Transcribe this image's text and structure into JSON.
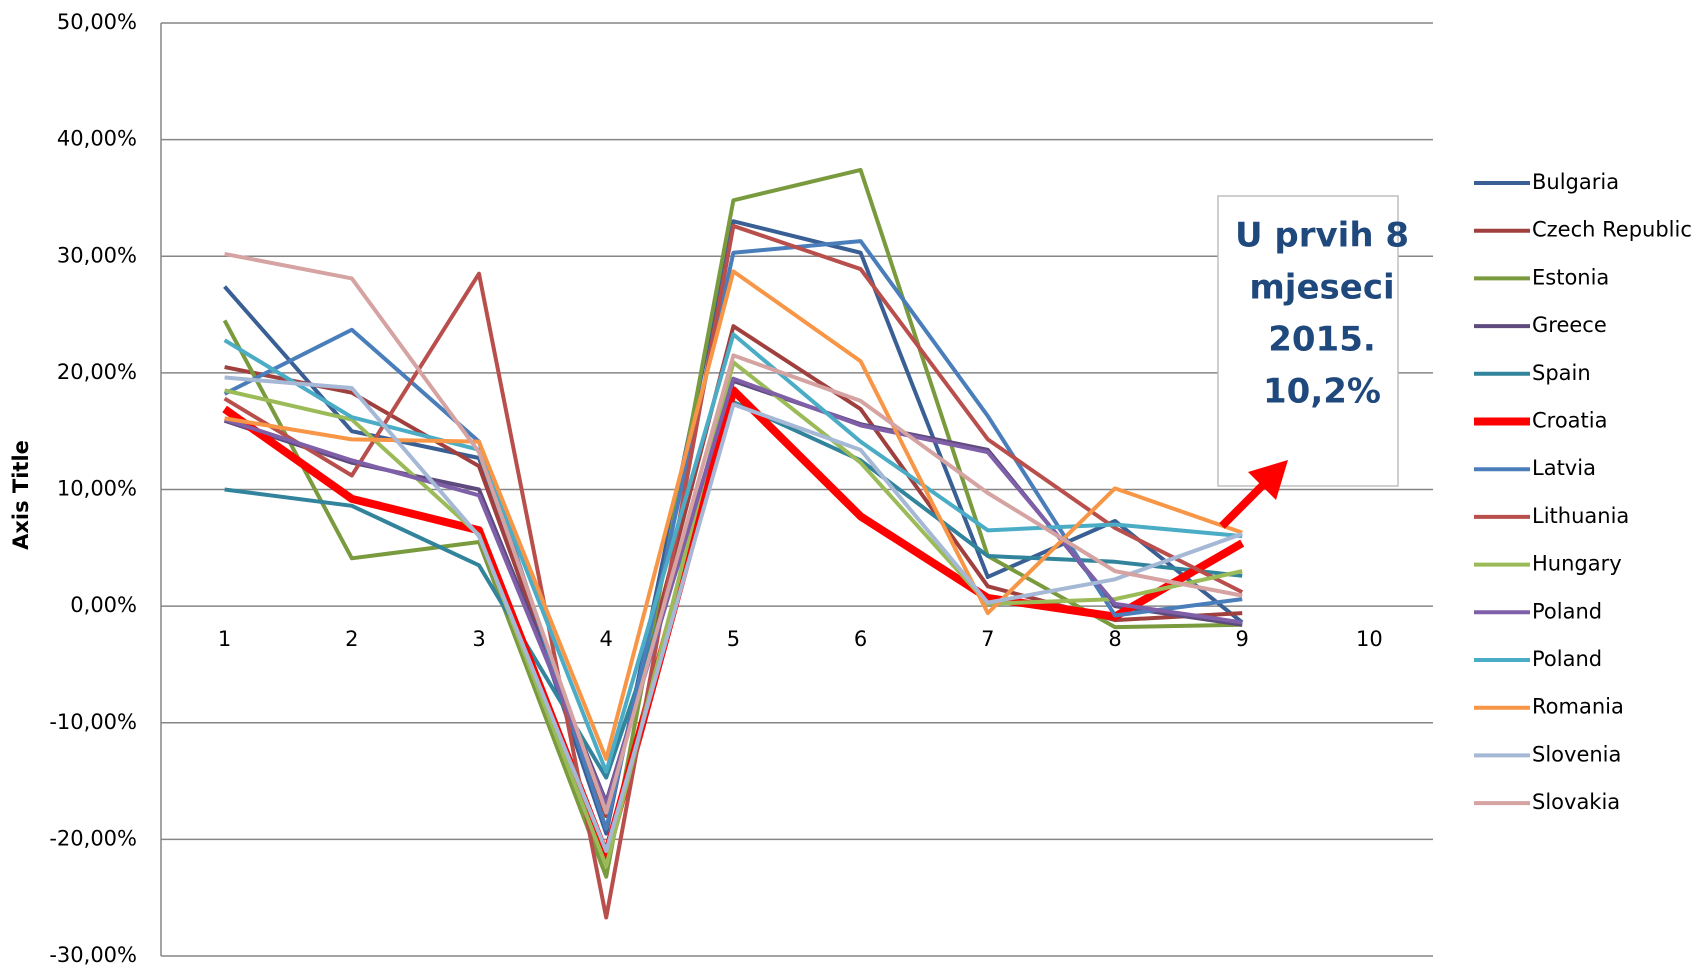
{
  "chart_data": {
    "type": "line",
    "y_label": "Axis Title",
    "categories": [
      "1",
      "2",
      "3",
      "4",
      "5",
      "6",
      "7",
      "8",
      "9",
      "10"
    ],
    "ylim": [
      -30,
      50
    ],
    "yticks": [
      {
        "value": -30,
        "label": "-30,00%"
      },
      {
        "value": -20,
        "label": "-20,00%"
      },
      {
        "value": -10,
        "label": "-10,00%"
      },
      {
        "value": 0,
        "label": "0,00%"
      },
      {
        "value": 10,
        "label": "10,00%"
      },
      {
        "value": 20,
        "label": "20,00%"
      },
      {
        "value": 30,
        "label": "30,00%"
      },
      {
        "value": 40,
        "label": "40,00%"
      },
      {
        "value": 50,
        "label": "50,00%"
      }
    ],
    "grid": true,
    "legend": "right",
    "annotation": [
      "U prvih 8",
      "mjeseci",
      "2015.",
      "10,2%"
    ],
    "series": [
      {
        "name": "Bulgaria",
        "color": "#3a5f95",
        "width": 4,
        "values": [
          27.4,
          15,
          12.7,
          -19.5,
          33,
          30.3,
          2.5,
          7.3,
          -1.4,
          null
        ]
      },
      {
        "name": "Czech Republic",
        "color": "#a0403e",
        "width": 4,
        "values": [
          20.5,
          18.3,
          12,
          -18,
          24,
          16.9,
          1.7,
          -1.2,
          -0.6,
          null
        ]
      },
      {
        "name": "Estonia",
        "color": "#7a9a3e",
        "width": 4,
        "values": [
          24.5,
          4.1,
          5.5,
          -23.2,
          34.8,
          37.4,
          4.3,
          -1.8,
          -1.6,
          null
        ]
      },
      {
        "name": "Greece",
        "color": "#5e4a7d",
        "width": 4,
        "values": [
          15.9,
          12.3,
          10,
          -16.8,
          19.3,
          15.6,
          13.4,
          0,
          -1.6,
          null
        ]
      },
      {
        "name": "Spain",
        "color": "#31849b",
        "width": 4,
        "values": [
          10,
          8.6,
          3.5,
          -14.7,
          17.5,
          12.5,
          4.3,
          3.8,
          2.6,
          null
        ]
      },
      {
        "name": "Croatia",
        "color": "#ff0000",
        "width": 8,
        "values": [
          16.9,
          9.2,
          6.5,
          -21.4,
          18.5,
          7.7,
          0.7,
          -0.9,
          5.4,
          null
        ]
      },
      {
        "name": "Latvia",
        "color": "#4a7ebb",
        "width": 4,
        "values": [
          18.2,
          23.7,
          14.1,
          -19.1,
          30.3,
          31.3,
          16.3,
          -0.8,
          0.6,
          null
        ]
      },
      {
        "name": "Lithuania",
        "color": "#b94f4c",
        "width": 4,
        "values": [
          17.8,
          11.2,
          28.5,
          -26.7,
          32.6,
          28.9,
          14.3,
          6.7,
          1.2,
          null
        ]
      },
      {
        "name": "Hungary",
        "color": "#9bbb59",
        "width": 4,
        "values": [
          18.5,
          16,
          6.1,
          -22.3,
          20.9,
          12.3,
          0.2,
          0.6,
          3,
          null
        ]
      },
      {
        "name": "Poland",
        "color": "#7f5fa8",
        "width": 4,
        "values": [
          16,
          12.5,
          9.5,
          -17,
          19.5,
          15.5,
          13.2,
          0.2,
          -1.4,
          null
        ]
      },
      {
        "name": "Poland",
        "color": "#4bacc6",
        "width": 4,
        "values": [
          22.8,
          16.2,
          13.4,
          -14.2,
          23.3,
          14.1,
          6.5,
          7,
          6,
          null
        ]
      },
      {
        "name": "Romania",
        "color": "#f79646",
        "width": 4,
        "values": [
          16.1,
          14.3,
          14.1,
          -13.1,
          28.7,
          21,
          -0.6,
          10.1,
          6.3,
          null
        ]
      },
      {
        "name": "Slovenia",
        "color": "#a5b8d6",
        "width": 4,
        "values": [
          19.6,
          18.7,
          6,
          -21,
          17.3,
          13.4,
          0.3,
          2.3,
          6.2,
          null
        ]
      },
      {
        "name": "Slovakia",
        "color": "#d5a3a2",
        "width": 4,
        "values": [
          30.2,
          28.1,
          13.2,
          -17.7,
          21.5,
          17.6,
          9.7,
          3,
          0.9,
          null
        ]
      }
    ]
  }
}
